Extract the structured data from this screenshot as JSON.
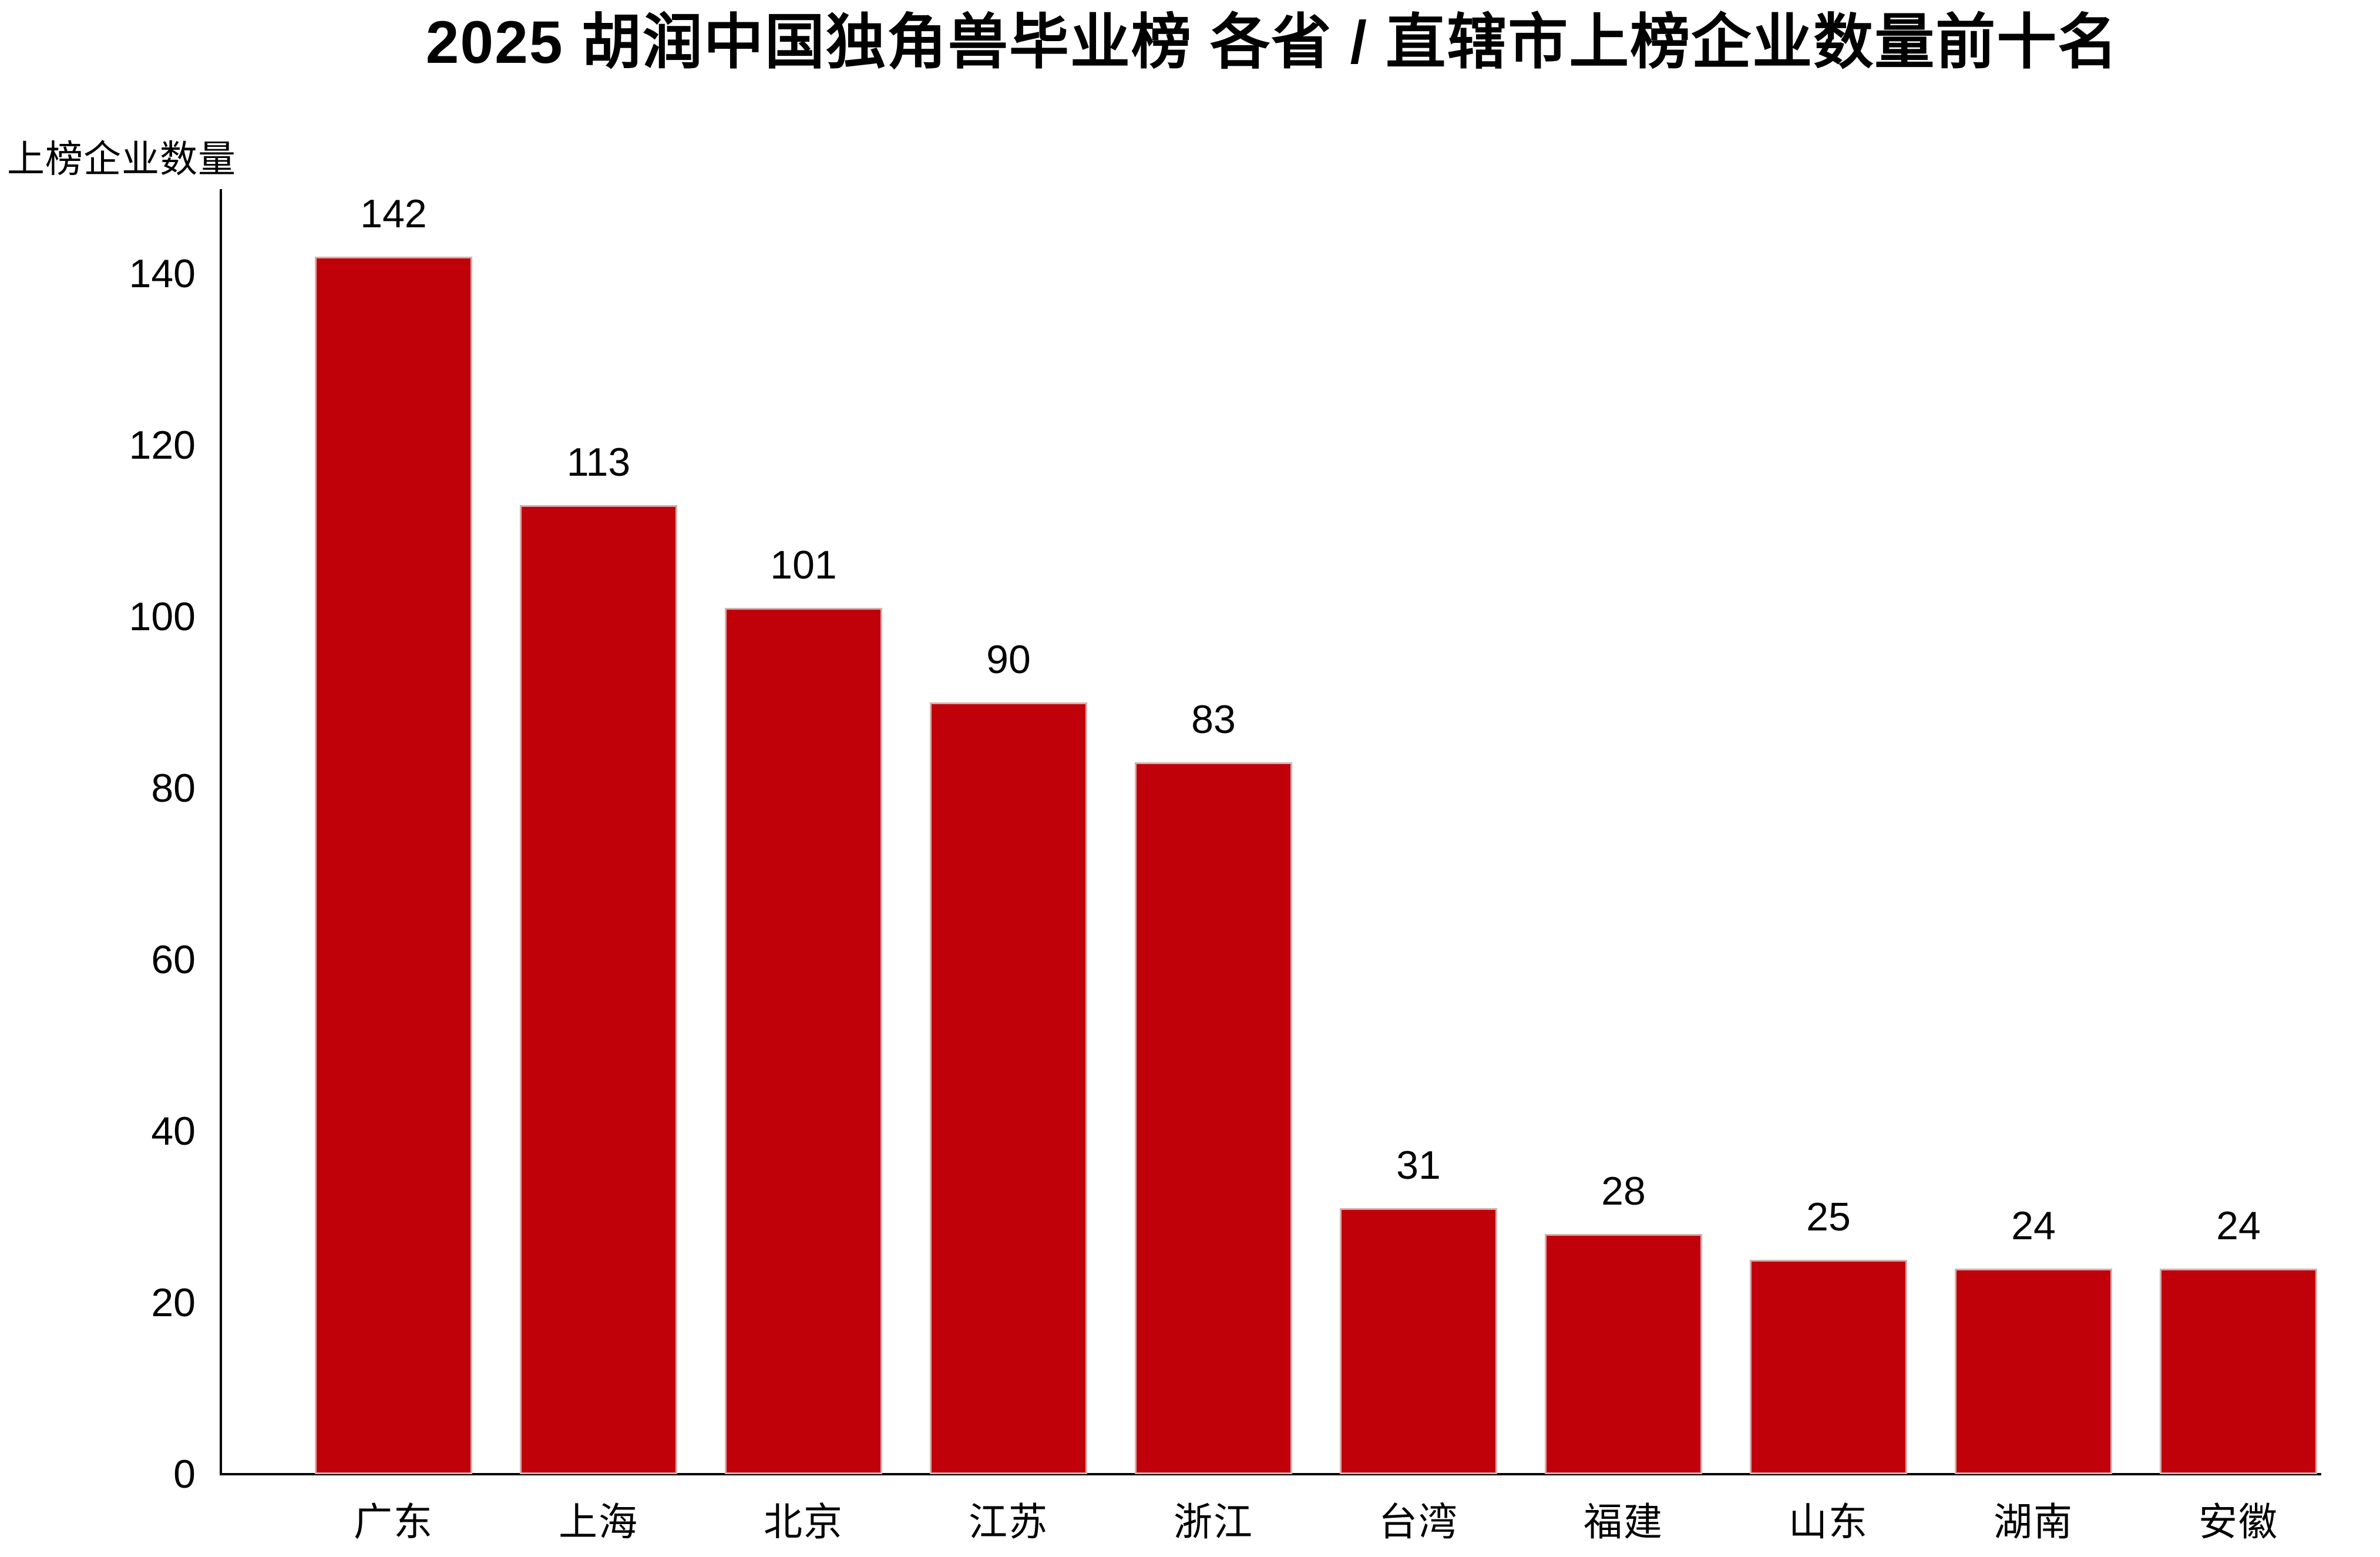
{
  "page": {
    "background": "#FFFFFF"
  },
  "chart_data": {
    "type": "bar",
    "title": "2025 胡润中国独角兽毕业榜 各省 / 直辖市上榜企业数量前十名",
    "ylabel": "上榜企业数量",
    "xlabel": "",
    "categories": [
      "广东",
      "上海",
      "北京",
      "江苏",
      "浙江",
      "台湾",
      "福建",
      "山东",
      "湖南",
      "安徽"
    ],
    "values": [
      142,
      113,
      101,
      90,
      83,
      31,
      28,
      25,
      24,
      24
    ],
    "yticks": [
      0,
      20,
      40,
      60,
      80,
      100,
      120,
      140
    ],
    "ylim": [
      0,
      150
    ],
    "grid": false,
    "legend": "none",
    "value_labels_shown": true,
    "bar_color": "#C0010A",
    "bar_edge_color": "#D4AFAF",
    "axis_color": "#000000",
    "text_color": "#000000"
  }
}
